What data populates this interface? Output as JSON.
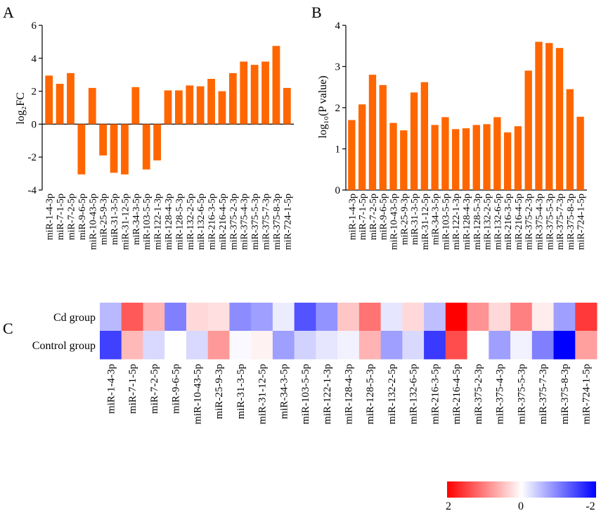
{
  "chart_data": [
    {
      "panel": "A",
      "type": "bar",
      "ylabel": "log₂FC",
      "ylim": [
        -4,
        6
      ],
      "yticks": [
        "-4",
        "-2",
        "0",
        "2",
        "4",
        "6"
      ],
      "categories": [
        "miR-1-4-3p",
        "miR-7-1-5p",
        "miR-7-2-5p",
        "miR-9-6-5p",
        "miR-10-43-5p",
        "miR-25-9-3p",
        "miR-31-3-5p",
        "miR-31-12-5p",
        "miR-34-3-5p",
        "miR-103-5-5p",
        "miR-122-1-3p",
        "miR-128-4-3p",
        "miR-128-5-3p",
        "miR-132-2-5p",
        "miR-132-6-5p",
        "miR-216-3-5p",
        "miR-216-4-5p",
        "miR-375-2-3p",
        "miR-375-4-3p",
        "miR-375-5-3p",
        "miR-375-7-3p",
        "miR-375-8-3p",
        "miR-724-1-5p"
      ],
      "values": [
        2.95,
        2.45,
        3.1,
        -3.05,
        2.2,
        -1.9,
        -2.95,
        -3.05,
        2.25,
        -2.75,
        -2.2,
        2.05,
        2.05,
        2.35,
        2.3,
        2.75,
        2.0,
        3.1,
        3.8,
        3.6,
        3.8,
        4.75,
        2.2
      ],
      "color": "#ff6600"
    },
    {
      "panel": "B",
      "type": "bar",
      "ylabel": "log₁₀(P value)",
      "ylim": [
        0,
        4
      ],
      "yticks": [
        "0",
        "1",
        "2",
        "3",
        "4"
      ],
      "categories": [
        "miR-1-4-3p",
        "miR-7-1-5p",
        "miR-7-2-5p",
        "miR-9-6-5p",
        "miR-10-43-5p",
        "miR-25-9-3p",
        "miR-31-3-5p",
        "miR-31-12-5p",
        "miR-34-3-5p",
        "miR-103-5-5p",
        "miR-122-1-3p",
        "miR-128-4-3p",
        "miR-128-5-3p",
        "miR-132-2-5p",
        "miR-132-6-5p",
        "miR-216-3-5p",
        "miR-216-4-5p",
        "miR-375-2-3p",
        "miR-375-4-3p",
        "miR-375-5-3p",
        "miR-375-7-3p",
        "miR-375-8-3p",
        "miR-724-1-5p"
      ],
      "values": [
        1.7,
        2.08,
        2.8,
        2.55,
        1.63,
        1.45,
        2.37,
        2.62,
        1.58,
        1.77,
        1.48,
        1.5,
        1.58,
        1.6,
        1.77,
        1.4,
        1.55,
        2.9,
        3.6,
        3.57,
        3.45,
        2.45,
        1.78
      ],
      "color": "#ff6600"
    },
    {
      "panel": "C",
      "type": "heatmap",
      "rows": [
        "Cd group",
        "Control group"
      ],
      "columns": [
        "miR-1-4-3p",
        "miR-7-1-5p",
        "miR-7-2-5p",
        "miR-9-6-5p",
        "miR-10-43-5p",
        "miR-25-9-3p",
        "miR-31-3-5p",
        "miR-31-12-5p",
        "miR-34-3-5p",
        "miR-103-5-5p",
        "miR-122-1-3p",
        "miR-128-4-3p",
        "miR-128-5-3p",
        "miR-132-2-5p",
        "miR-132-6-5p",
        "miR-216-3-5p",
        "miR-216-4-5p",
        "miR-375-2-3p",
        "miR-375-4-3p",
        "miR-375-5-3p",
        "miR-375-7-3p",
        "miR-375-8-3p",
        "miR-724-1-5p"
      ],
      "values": [
        [
          -0.55,
          1.3,
          0.6,
          -1.0,
          0.3,
          0.25,
          -0.9,
          -0.75,
          -0.15,
          -1.35,
          -0.85,
          0.45,
          1.1,
          -0.2,
          0.3,
          -0.5,
          2.0,
          0.85,
          0.3,
          1.0,
          0.15,
          -0.75,
          1.55
        ],
        [
          -1.5,
          0.55,
          -0.3,
          0.0,
          -0.3,
          0.8,
          -0.05,
          0.1,
          -0.75,
          -0.35,
          -0.2,
          -0.1,
          0.6,
          -0.75,
          -0.3,
          -1.55,
          1.4,
          0.0,
          -0.75,
          -0.1,
          -1.0,
          -2.0,
          0.75
        ]
      ],
      "color_scale": {
        "min": -2,
        "mid": 0,
        "max": 2,
        "min_color": "#0000ff",
        "mid_color": "#ffffff",
        "max_color": "#ff0000"
      },
      "scale_labels": [
        "2",
        "0",
        "-2"
      ]
    }
  ],
  "panel_labels": [
    "A",
    "B",
    "C"
  ]
}
